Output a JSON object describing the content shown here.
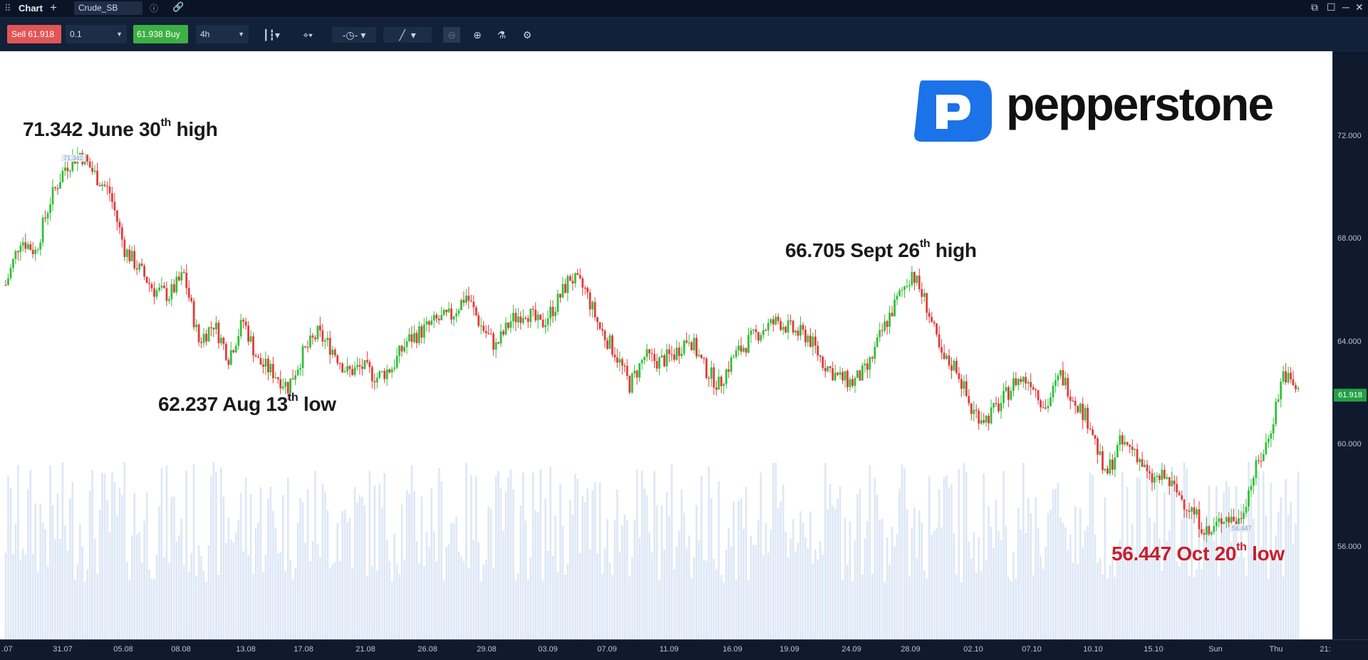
{
  "window": {
    "title": "Chart",
    "symbol": "Crude_SB"
  },
  "toolbar": {
    "sell_label": "Sell 61.918",
    "quantity": "0.1",
    "buy_label": "61.938 Buy",
    "timeframe": "4h"
  },
  "colors": {
    "up": "#32c03a",
    "down": "#e23b3b",
    "volume": "#dde7f6",
    "last_price": "#22a045",
    "annotation_red": "#c8202a"
  },
  "brand": {
    "name": "pepperstone",
    "logo_color": "#1a73e8"
  },
  "annotations": {
    "june_high": {
      "price": "71.342",
      "text": "June 30",
      "sup": "th",
      "suffix": "high",
      "marker": "71.342"
    },
    "aug_low": {
      "price": "62.237",
      "text": "Aug 13",
      "sup": "th",
      "suffix": "low"
    },
    "sept_high": {
      "price": "66.705",
      "text": "Sept 26",
      "sup": "th",
      "suffix": "high"
    },
    "oct_low": {
      "price": "56.447",
      "text": "Oct 20",
      "sup": "th",
      "suffix": "low",
      "marker": "56.447"
    }
  },
  "price_axis": {
    "ticks": [
      "72.000",
      "68.000",
      "64.000",
      "60.000",
      "56.000"
    ],
    "last_price": "61.918"
  },
  "time_axis": {
    "ticks": [
      ".07",
      "31.07",
      "05.08",
      "08.08",
      "13.08",
      "17.08",
      "21.08",
      "26.08",
      "29.08",
      "03.09",
      "07.09",
      "11.09",
      "16.09",
      "19.09",
      "24.09",
      "28.09",
      "02.10",
      "07.10",
      "10.10",
      "15.10",
      "Sun",
      "Thu",
      "21:"
    ]
  },
  "chart_data": {
    "type": "candlestick",
    "instrument": "Crude_SB",
    "timeframe": "4h",
    "y_range": [
      52.0,
      74.0
    ],
    "key_points": [
      {
        "label": "June 30 high",
        "value": 71.342
      },
      {
        "label": "Aug 13 low",
        "value": 62.237
      },
      {
        "label": "Sept 26 high",
        "value": 66.705
      },
      {
        "label": "Oct 20 low",
        "value": 56.447
      }
    ],
    "close_path": [
      66.2,
      68.0,
      67.5,
      69.5,
      70.8,
      71.342,
      70.5,
      69.8,
      67.6,
      66.8,
      66.0,
      65.8,
      66.6,
      64.0,
      64.7,
      63.4,
      64.8,
      63.2,
      62.8,
      62.237,
      63.5,
      64.3,
      63.7,
      62.8,
      63.0,
      62.6,
      63.0,
      64.0,
      64.4,
      64.8,
      65.0,
      65.8,
      64.6,
      63.8,
      64.8,
      65.2,
      64.6,
      65.4,
      66.5,
      66.0,
      64.5,
      63.6,
      62.3,
      63.4,
      63.2,
      63.5,
      64.2,
      63.0,
      62.3,
      63.4,
      64.0,
      64.5,
      64.8,
      64.4,
      64.2,
      63.2,
      62.6,
      62.4,
      62.9,
      64.4,
      65.6,
      66.705,
      65.4,
      63.3,
      63.0,
      61.3,
      61.0,
      61.6,
      62.5,
      62.5,
      61.4,
      62.7,
      61.7,
      60.8,
      58.7,
      60.0,
      59.8,
      58.6,
      58.7,
      58.0,
      57.3,
      56.447,
      57.2,
      57.0,
      58.8,
      60.2,
      62.8,
      62.0
    ]
  }
}
